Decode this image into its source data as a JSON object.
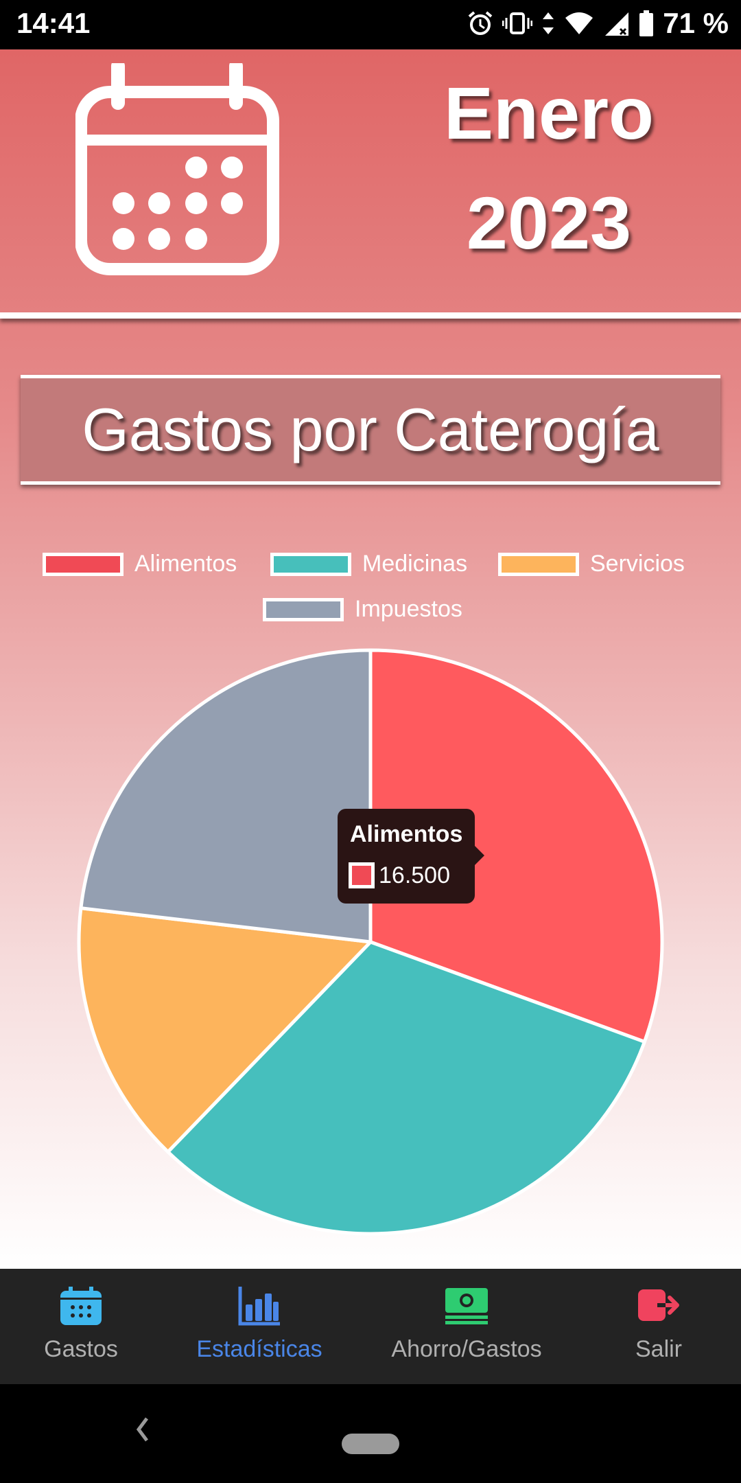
{
  "status_bar": {
    "time": "14:41",
    "battery": "71 %"
  },
  "header": {
    "month": "Enero",
    "year": "2023"
  },
  "section_title": "Gastos por Caterogía",
  "legend": [
    {
      "label": "Alimentos",
      "color": "#f04a55"
    },
    {
      "label": "Medicinas",
      "color": "#47bfbb"
    },
    {
      "label": "Servicios",
      "color": "#fdb45c"
    },
    {
      "label": "Impuestos",
      "color": "#94a0b2"
    }
  ],
  "chart_data": {
    "type": "pie",
    "categories": [
      "Alimentos",
      "Medicinas",
      "Servicios",
      "Impuestos"
    ],
    "values": [
      16500,
      17100,
      7900,
      12500
    ],
    "colors": [
      "#ff5a5e",
      "#46bfbd",
      "#fdb45c",
      "#949fb1"
    ],
    "legend_position": "top"
  },
  "tooltip": {
    "title": "Alimentos",
    "value": "16.500"
  },
  "bottom_nav": [
    {
      "label": "Gastos",
      "icon": "calendar-icon",
      "color": "#3fb7ee",
      "active": false
    },
    {
      "label": "Estadísticas",
      "icon": "bar-chart-icon",
      "color": "#4a86e8",
      "active": true
    },
    {
      "label": "Ahorro/Gastos",
      "icon": "money-icon",
      "color": "#2ecc71",
      "active": false
    },
    {
      "label": "Salir",
      "icon": "logout-icon",
      "color": "#f0435e",
      "active": false
    }
  ]
}
